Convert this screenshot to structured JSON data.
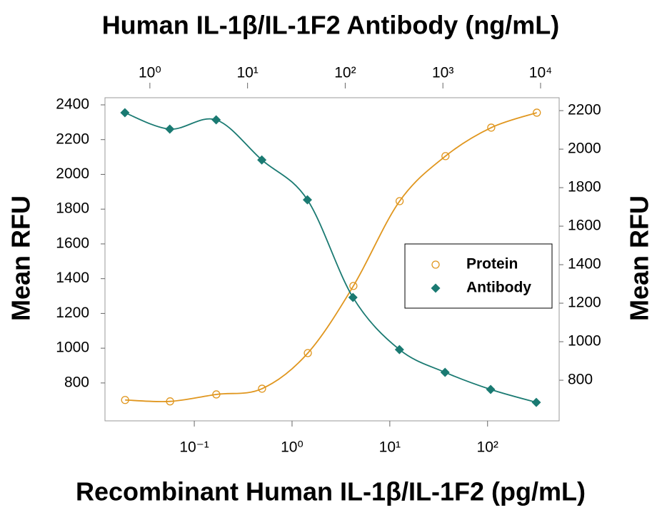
{
  "chart_data": {
    "type": "scatter",
    "title": "Human IL-1β/IL-1F2 Antibody (ng/mL)",
    "xlabel": "Recombinant Human IL-1β/IL-1F2 (pg/mL)",
    "ylabel": "Mean RFU",
    "y2label": "Mean RFU",
    "xlog": true,
    "x2log": true,
    "xlim": [
      0.0122,
      540
    ],
    "xticks": [
      {
        "value": 0.1,
        "label": "10⁻¹"
      },
      {
        "value": 1,
        "label": "10⁰"
      },
      {
        "value": 10,
        "label": "10¹"
      },
      {
        "value": 100,
        "label": "10²"
      }
    ],
    "x2lim": [
      0.347,
      15500
    ],
    "x2ticks": [
      {
        "value": 1,
        "label": "10⁰"
      },
      {
        "value": 10,
        "label": "10¹"
      },
      {
        "value": 100,
        "label": "10²"
      },
      {
        "value": 1000,
        "label": "10³"
      },
      {
        "value": 10000,
        "label": "10⁴"
      }
    ],
    "ylim": [
      582,
      2441
    ],
    "yticks": [
      800,
      1000,
      1200,
      1400,
      1600,
      1800,
      2000,
      2200,
      2400
    ],
    "y2lim": [
      589,
      2267
    ],
    "y2ticks": [
      800,
      1000,
      1200,
      1400,
      1600,
      1800,
      2000,
      2200
    ],
    "legend": "right",
    "series": [
      {
        "name": "Protein",
        "color": "#e0961e",
        "marker": "circle",
        "line": true,
        "x": [
          0.0196,
          0.0565,
          0.168,
          0.493,
          1.45,
          4.24,
          12.6,
          37.1,
          109,
          319
        ],
        "values": [
          702,
          694,
          734,
          767,
          972,
          1358,
          1846,
          2105,
          2269,
          2355
        ]
      },
      {
        "name": "Antibody",
        "color": "#1a7a72",
        "marker": "diamond",
        "line": true,
        "axis": "y2",
        "xaxis": "x2",
        "x": [
          0.555,
          1.6,
          4.77,
          14.0,
          41.0,
          120,
          359,
          1052,
          3083,
          9040
        ],
        "values": [
          2189,
          2104,
          2152,
          1944,
          1737,
          1230,
          959,
          841,
          752,
          685
        ]
      }
    ]
  }
}
